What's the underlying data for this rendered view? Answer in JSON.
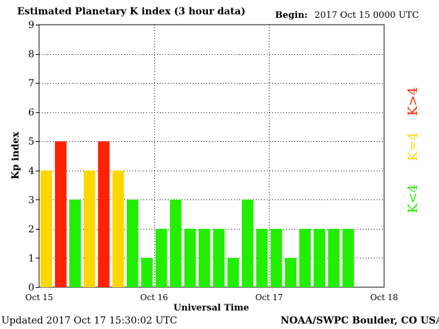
{
  "header": {
    "title": "Estimated Planetary K index (3 hour data)",
    "begin_label": "Begin:",
    "begin_value": "2017 Oct 15 0000 UTC"
  },
  "footer": {
    "updated_label": "Updated",
    "updated_value": "2017 Oct 17 15:30:02 UTC",
    "credit": "NOAA/SWPC Boulder, CO USA"
  },
  "legend": [
    {
      "label": "K>4",
      "color": "#ff2200"
    },
    {
      "label": "K=4",
      "color": "#ffd700"
    },
    {
      "label": "K<4",
      "color": "#22ee00"
    }
  ],
  "colors": {
    "high": "#ff2200",
    "equal": "#ffd700",
    "low": "#22ee00"
  },
  "chart_data": {
    "type": "bar",
    "xlabel": "Universal Time",
    "ylabel": "Kp index",
    "ylim": [
      0,
      9
    ],
    "yticks": [
      "0",
      "1",
      "2",
      "3",
      "4",
      "5",
      "6",
      "7",
      "8",
      "9"
    ],
    "xticks": [
      "Oct 15",
      "Oct 16",
      "Oct 17",
      "Oct 18"
    ],
    "grid": true,
    "categories": [
      "2017-10-15 00:00",
      "2017-10-15 03:00",
      "2017-10-15 06:00",
      "2017-10-15 09:00",
      "2017-10-15 12:00",
      "2017-10-15 15:00",
      "2017-10-15 18:00",
      "2017-10-15 21:00",
      "2017-10-16 00:00",
      "2017-10-16 03:00",
      "2017-10-16 06:00",
      "2017-10-16 09:00",
      "2017-10-16 12:00",
      "2017-10-16 15:00",
      "2017-10-16 18:00",
      "2017-10-16 21:00",
      "2017-10-17 00:00",
      "2017-10-17 03:00",
      "2017-10-17 06:00",
      "2017-10-17 09:00",
      "2017-10-17 12:00",
      "2017-10-17 15:00"
    ],
    "values": [
      4,
      5,
      3,
      4,
      5,
      4,
      3,
      1,
      2,
      3,
      2,
      2,
      2,
      1,
      3,
      2,
      2,
      1,
      2,
      2,
      2,
      2
    ]
  }
}
